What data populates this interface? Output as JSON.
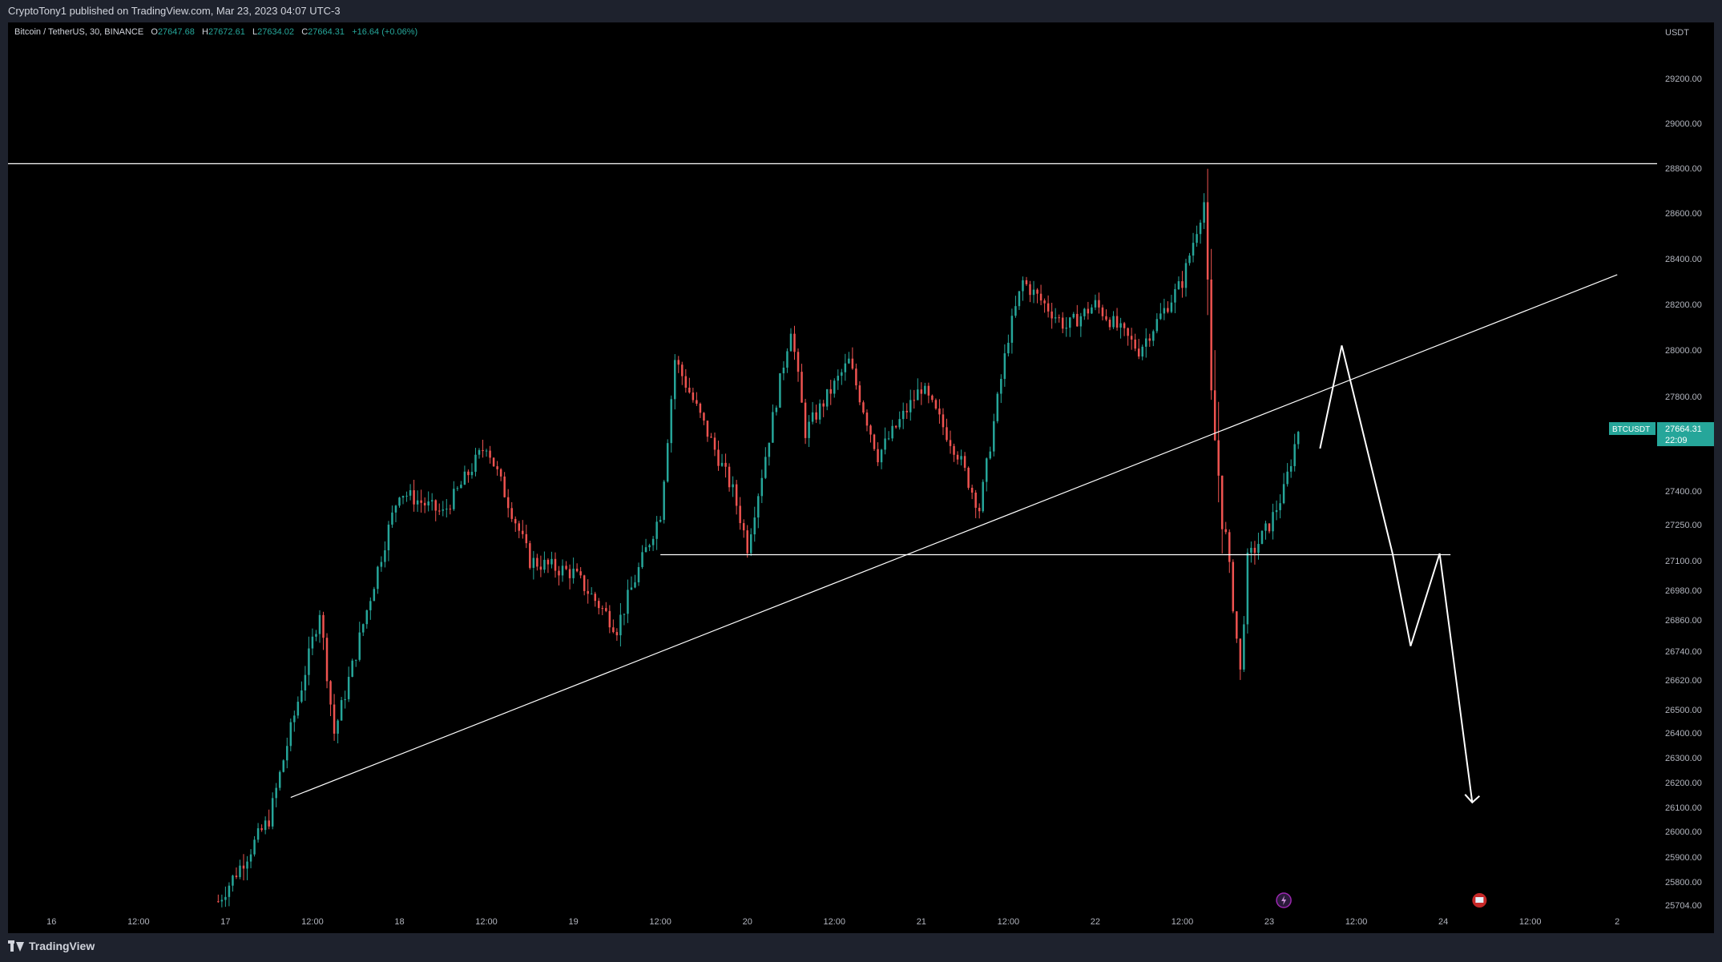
{
  "publish_line": "CryptoTony1 published on TradingView.com, Mar 23, 2023 04:07 UTC-3",
  "legend": {
    "symbol_text": "Bitcoin / TetherUS, 30, BINANCE",
    "o_label": "O",
    "o_value": "27647.68",
    "h_label": "H",
    "h_value": "27672.61",
    "l_label": "L",
    "l_value": "27634.02",
    "c_label": "C",
    "c_value": "27664.31",
    "change": "+16.64 (+0.06%)"
  },
  "brand": "TradingView",
  "colors": {
    "up": "#26a69a",
    "down": "#ef5350",
    "drawing": "#ffffff",
    "axis_text": "#b2b5be",
    "tag_bg": "#26a69a"
  },
  "chart_data": {
    "type": "candlestick",
    "symbol": "BTCUSDT",
    "currency_label": "USDT",
    "last_price": "27664.31",
    "countdown": "22:09",
    "ylim": [
      25660,
      29280
    ],
    "y_ticks": [
      "29200.00",
      "29000.00",
      "28800.00",
      "28600.00",
      "28400.00",
      "28200.00",
      "28000.00",
      "27800.00",
      "27400.00",
      "27250.00",
      "27100.00",
      "26980.00",
      "26860.00",
      "26740.00",
      "26620.00",
      "26500.00",
      "26400.00",
      "26300.00",
      "26200.00",
      "26100.00",
      "26000.00",
      "25900.00",
      "25800.00",
      "25704.00"
    ],
    "x_ticks": [
      "16",
      "12:00",
      "17",
      "12:00",
      "18",
      "12:00",
      "19",
      "12:00",
      "20",
      "12:00",
      "21",
      "12:00",
      "22",
      "12:00",
      "23",
      "12:00",
      "24",
      "12:00",
      "2"
    ],
    "x_tick_hours": [
      0,
      12,
      24,
      36,
      48,
      60,
      72,
      84,
      96,
      108,
      120,
      132,
      144,
      156,
      168,
      180,
      192,
      204,
      216
    ],
    "ohlc_samples_time_hours": [
      23,
      30,
      37,
      39,
      48,
      54,
      60,
      66,
      72,
      78,
      84,
      86,
      94,
      96,
      102,
      104,
      110,
      114,
      120,
      125,
      128,
      132,
      134,
      140,
      144,
      150,
      156,
      159,
      160,
      164,
      165,
      168,
      170,
      172
    ],
    "ohlc_samples_close": [
      25720,
      26050,
      26900,
      26400,
      27400,
      27300,
      27600,
      27100,
      27050,
      26830,
      27300,
      27960,
      27400,
      27160,
      28100,
      27650,
      27950,
      27550,
      27840,
      27560,
      27320,
      28060,
      28300,
      28100,
      28200,
      28000,
      28300,
      28650,
      27750,
      26650,
      27100,
      27250,
      27400,
      27660
    ],
    "drawings": {
      "resistance_level": 28820,
      "support_level": 27125,
      "trendline": {
        "from": {
          "t": 33,
          "price": 26140
        },
        "to": {
          "t": 216,
          "price": 28330
        }
      },
      "projection": [
        {
          "t": 175,
          "price": 27580
        },
        {
          "t": 178,
          "price": 28020
        },
        {
          "t": 185,
          "price": 27130
        },
        {
          "t": 187.5,
          "price": 26760
        },
        {
          "t": 191.5,
          "price": 27130
        },
        {
          "t": 196,
          "price": 26120
        }
      ]
    }
  }
}
